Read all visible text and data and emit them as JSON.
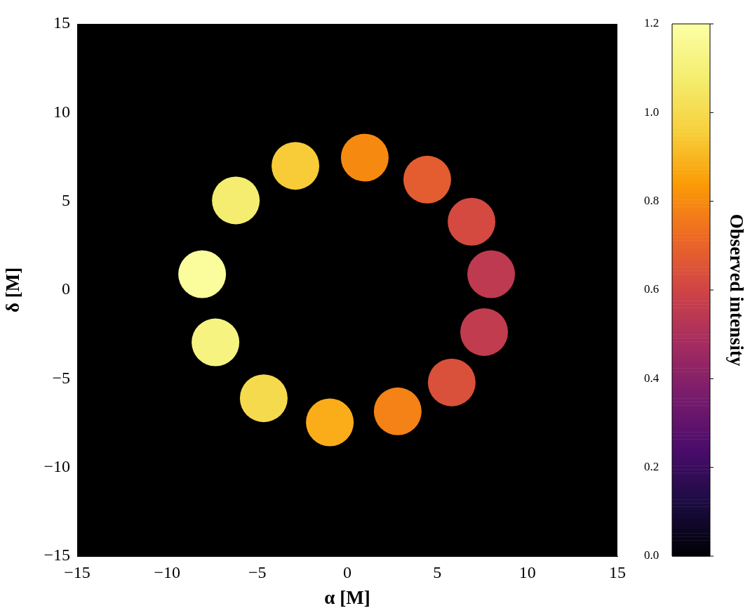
{
  "chart_data": {
    "type": "scatter",
    "xlabel": "α [M]",
    "ylabel": "δ [M]",
    "clabel": "Observed intensity",
    "x": [
      -8.06,
      -7.32,
      -6.19,
      -4.64,
      -2.88,
      -0.97,
      0.97,
      2.8,
      4.44,
      5.8,
      6.9,
      7.6,
      7.99
    ],
    "values": [
      0.89,
      -2.95,
      5.05,
      -6.1,
      7.0,
      -7.46,
      7.46,
      -6.84,
      6.22,
      -5.21,
      3.85,
      -2.37,
      0.89
    ],
    "cvalues": [
      1.18,
      1.12,
      1.08,
      1.0,
      0.95,
      0.88,
      0.8,
      0.78,
      0.68,
      0.64,
      0.62,
      0.56,
      0.55
    ],
    "xlim": [
      -15,
      15
    ],
    "ylim": [
      -15,
      15
    ],
    "xticks": [
      -15,
      -10,
      -5,
      0,
      5,
      10,
      15
    ],
    "yticks": [
      -15,
      -10,
      -5,
      0,
      5,
      10,
      15
    ],
    "clim": [
      0,
      1.2
    ],
    "cticks": [
      {
        "value": 0,
        "label": "0.0"
      },
      {
        "value": 0.2,
        "label": "0.2"
      },
      {
        "value": 0.4,
        "label": "0.4"
      },
      {
        "value": 0.6,
        "label": "0.6"
      },
      {
        "value": 0.8,
        "label": "0.8"
      },
      {
        "value": 1.0,
        "label": "1.0"
      },
      {
        "value": 1.2,
        "label": "1.2"
      }
    ],
    "marker": "circle"
  }
}
